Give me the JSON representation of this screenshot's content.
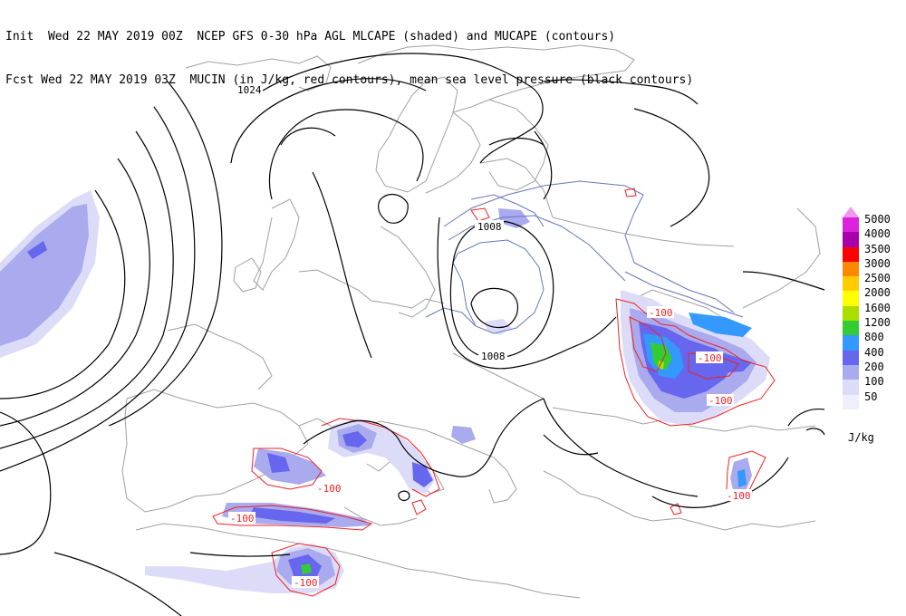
{
  "header": {
    "line1": "Init  Wed 22 MAY 2019 00Z  NCEP GFS 0-30 hPa AGL MLCAPE (shaded) and MUCAPE (contours)",
    "line2": "Fcst Wed 22 MAY 2019 03Z  MUCIN (in J/kg, red contours), mean sea level pressure (black contours)"
  },
  "isobar_labels": [
    "1024",
    "1008",
    "1008"
  ],
  "cin_labels": [
    "-100",
    "-100",
    "-100",
    "-100",
    "-100",
    "-100",
    "-100"
  ],
  "legend": {
    "values": [
      "5000",
      "4000",
      "3500",
      "3000",
      "2500",
      "2000",
      "1600",
      "1200",
      "800",
      "400",
      "200",
      "100",
      "50"
    ],
    "colors": [
      "#ff33ff",
      "#dd22dd",
      "#aa00aa",
      "#ff0000",
      "#ff8800",
      "#ffcc00",
      "#ffff00",
      "#aadd00",
      "#33cc33",
      "#3399ff",
      "#6666ee",
      "#aaaaee",
      "#dcdcf8",
      "#eeeefc"
    ],
    "units": "J/kg"
  },
  "colors": {
    "isobar": "#000000",
    "cin_contour": "#ee2222",
    "coastline": "#a0a0a0",
    "mucape_contour": "#6677bb"
  }
}
